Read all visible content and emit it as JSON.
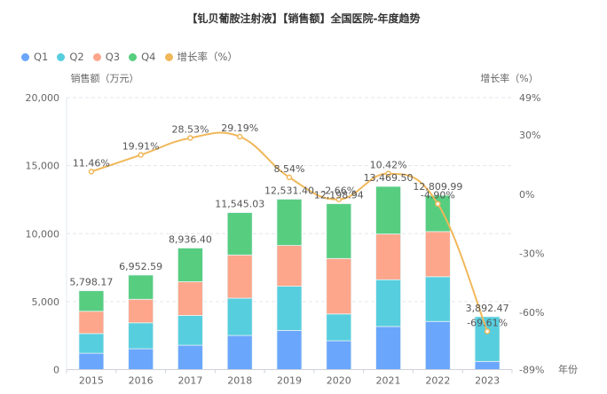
{
  "chart_data": {
    "type": "bar",
    "title": "【钆贝葡胺注射液】【销售额】全国医院-年度趋势",
    "xlabel": "年份",
    "ylabel": "销售额（万元）",
    "y2label": "增长率（%）",
    "categories": [
      "2015",
      "2016",
      "2017",
      "2018",
      "2019",
      "2020",
      "2021",
      "2022",
      "2023"
    ],
    "series": [
      {
        "name": "Q1",
        "type": "bar",
        "stack": "sales",
        "color": "#6aa6fc",
        "values": [
          1200,
          1530,
          1790,
          2510,
          2880,
          2120,
          3170,
          3540,
          600
        ]
      },
      {
        "name": "Q2",
        "type": "bar",
        "stack": "sales",
        "color": "#57cede",
        "values": [
          1450,
          1910,
          2190,
          2740,
          3250,
          1970,
          3440,
          3290,
          3292.47
        ]
      },
      {
        "name": "Q3",
        "type": "bar",
        "stack": "sales",
        "color": "#fda68c",
        "values": [
          1640,
          1730,
          2480,
          3180,
          3000,
          4080,
          3360,
          3320,
          0
        ]
      },
      {
        "name": "Q4",
        "type": "bar",
        "stack": "sales",
        "color": "#57cd80",
        "values": [
          1508.17,
          1782.59,
          2476.4,
          3115.03,
          3401.4,
          4028.94,
          3499.5,
          2659.99,
          0
        ]
      },
      {
        "name": "增长率（%）",
        "type": "line",
        "axis": "right",
        "color": "#f0b85a",
        "values": [
          11.46,
          19.91,
          28.53,
          29.19,
          8.54,
          -2.66,
          10.42,
          -4.9,
          -69.61
        ]
      }
    ],
    "totals": [
      5798.17,
      6952.59,
      8936.4,
      11545.03,
      12531.4,
      12198.94,
      13469.5,
      12809.99,
      3892.47
    ],
    "total_labels": [
      "5,798.17",
      "6,952.59",
      "8,936.40",
      "11,545.03",
      "12,531.40",
      "12,198.94",
      "13,469.50",
      "12,809.99",
      "3,892.47"
    ],
    "rate_labels": [
      "11.46%",
      "19.91%",
      "28.53%",
      "29.19%",
      "8.54%",
      "-2.66%",
      "10.42%",
      "-4.90%",
      "-69.61%"
    ],
    "ylim": [
      0,
      20000
    ],
    "yticks": [
      0,
      5000,
      10000,
      15000,
      20000
    ],
    "ytick_labels": [
      "0",
      "5,000",
      "10,000",
      "15,000",
      "20,000"
    ],
    "y2lim": [
      -89,
      49
    ],
    "y2ticks": [
      49,
      30,
      0,
      -30,
      -60,
      -89
    ],
    "y2tick_labels": [
      "49%",
      "30%",
      "0%",
      "-30%",
      "-60%",
      "-89%"
    ],
    "grid": true,
    "legend_position": "top-left"
  },
  "legend": [
    {
      "label": "Q1",
      "color": "#6aa6fc"
    },
    {
      "label": "Q2",
      "color": "#57cede"
    },
    {
      "label": "Q3",
      "color": "#fda68c"
    },
    {
      "label": "Q4",
      "color": "#57cd80"
    },
    {
      "label": "增长率（%）",
      "color": "#f0b85a"
    }
  ]
}
